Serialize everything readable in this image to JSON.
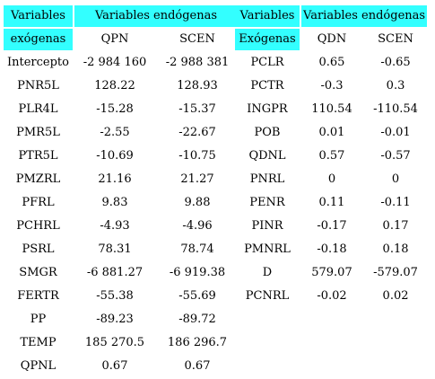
{
  "left_table": {
    "header_row1": [
      "Variables",
      "Variables endógenas"
    ],
    "header_row2": [
      "exógenas",
      "QPN",
      "SCEN"
    ],
    "rows": [
      [
        "Intercepto",
        "-2 984 160",
        "-2 988 381"
      ],
      [
        "PNR5L",
        "128.22",
        "128.93"
      ],
      [
        "PLR4L",
        "-15.28",
        "-15.37"
      ],
      [
        "PMR5L",
        "-2.55",
        "-22.67"
      ],
      [
        "PTR5L",
        "-10.69",
        "-10.75"
      ],
      [
        "PMZRL",
        "21.16",
        "21.27"
      ],
      [
        "PFRL",
        "9.83",
        "9.88"
      ],
      [
        "PCHRL",
        "-4.93",
        "-4.96"
      ],
      [
        "PSRL",
        "78.31",
        "78.74"
      ],
      [
        "SMGR",
        "-6 881.27",
        "-6 919.38"
      ],
      [
        "FERTR",
        "-55.38",
        "-55.69"
      ],
      [
        "PP",
        "-89.23",
        "-89.72"
      ],
      [
        "TEMP",
        "185 270.5",
        "186 296.7"
      ],
      [
        "QPNL",
        "0.67",
        "0.67"
      ]
    ]
  },
  "right_table": {
    "header_row1": [
      "Variables",
      "Variables endógenas"
    ],
    "header_row2": [
      "Exógenas",
      "QDN",
      "SCEN"
    ],
    "rows": [
      [
        "PCLR",
        "0.65",
        "-0.65"
      ],
      [
        "PCTR",
        "-0.3",
        "0.3"
      ],
      [
        "INGPR",
        "110.54",
        "-110.54"
      ],
      [
        "POB",
        "0.01",
        "-0.01"
      ],
      [
        "QDNL",
        "0.57",
        "-0.57"
      ],
      [
        "PNRL",
        "0",
        "0"
      ],
      [
        "PENR",
        "0.11",
        "-0.11"
      ],
      [
        "PINR",
        "-0.17",
        "0.17"
      ],
      [
        "PMNRL",
        "-0.18",
        "0.18"
      ],
      [
        "D",
        "579.07",
        "-579.07"
      ],
      [
        "PCNRL",
        "-0.02",
        "0.02"
      ]
    ]
  },
  "colors": {
    "header_bg": "#33ffff",
    "background": "#ffffff",
    "text": "#000000"
  }
}
